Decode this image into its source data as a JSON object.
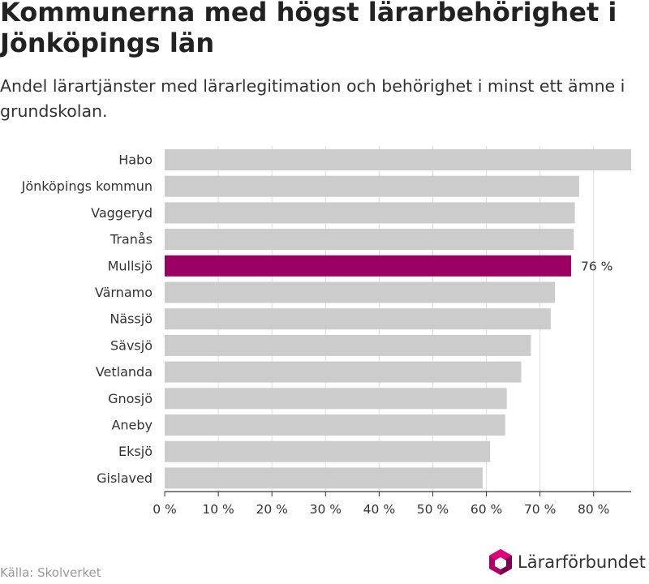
{
  "title": "Kommunerna med högst lärarbehörighet i Jönköpings län",
  "subtitle": "Andel lärartjänster med lärarlegitimation och behörighet i minst ett ämne i grundskolan.",
  "source": "Källa: Skolverket",
  "logo_text": "Lärarförbundet",
  "colors": {
    "bar": "#cccccc",
    "highlight": "#9b0063",
    "grid": "#dddddd",
    "axis": "#333333",
    "logo_hex": "#b0006b"
  },
  "chart_data": {
    "type": "bar",
    "orientation": "horizontal",
    "categories": [
      "Habo",
      "Jönköpings kommun",
      "Vaggeryd",
      "Tranås",
      "Mullsjö",
      "Värnamo",
      "Nässjö",
      "Sävsjö",
      "Vetlanda",
      "Gnosjö",
      "Aneby",
      "Eksjö",
      "Gislaved"
    ],
    "values": [
      87,
      77.3,
      76.5,
      76.3,
      75.8,
      72.8,
      72,
      68.3,
      66.5,
      63.8,
      63.5,
      60.7,
      59.3
    ],
    "highlight": "Mullsjö",
    "data_labels": [
      {
        "category": "Mullsjö",
        "text": "76 %"
      }
    ],
    "xlim": [
      0,
      87
    ],
    "xticks": [
      0,
      10,
      20,
      30,
      40,
      50,
      60,
      70,
      80
    ],
    "xtick_labels": [
      "0 %",
      "10 %",
      "20 %",
      "30 %",
      "40 %",
      "50 %",
      "60 %",
      "70 %",
      "80 %"
    ],
    "grid": true,
    "legend": "none",
    "xlabel": "",
    "ylabel": ""
  }
}
